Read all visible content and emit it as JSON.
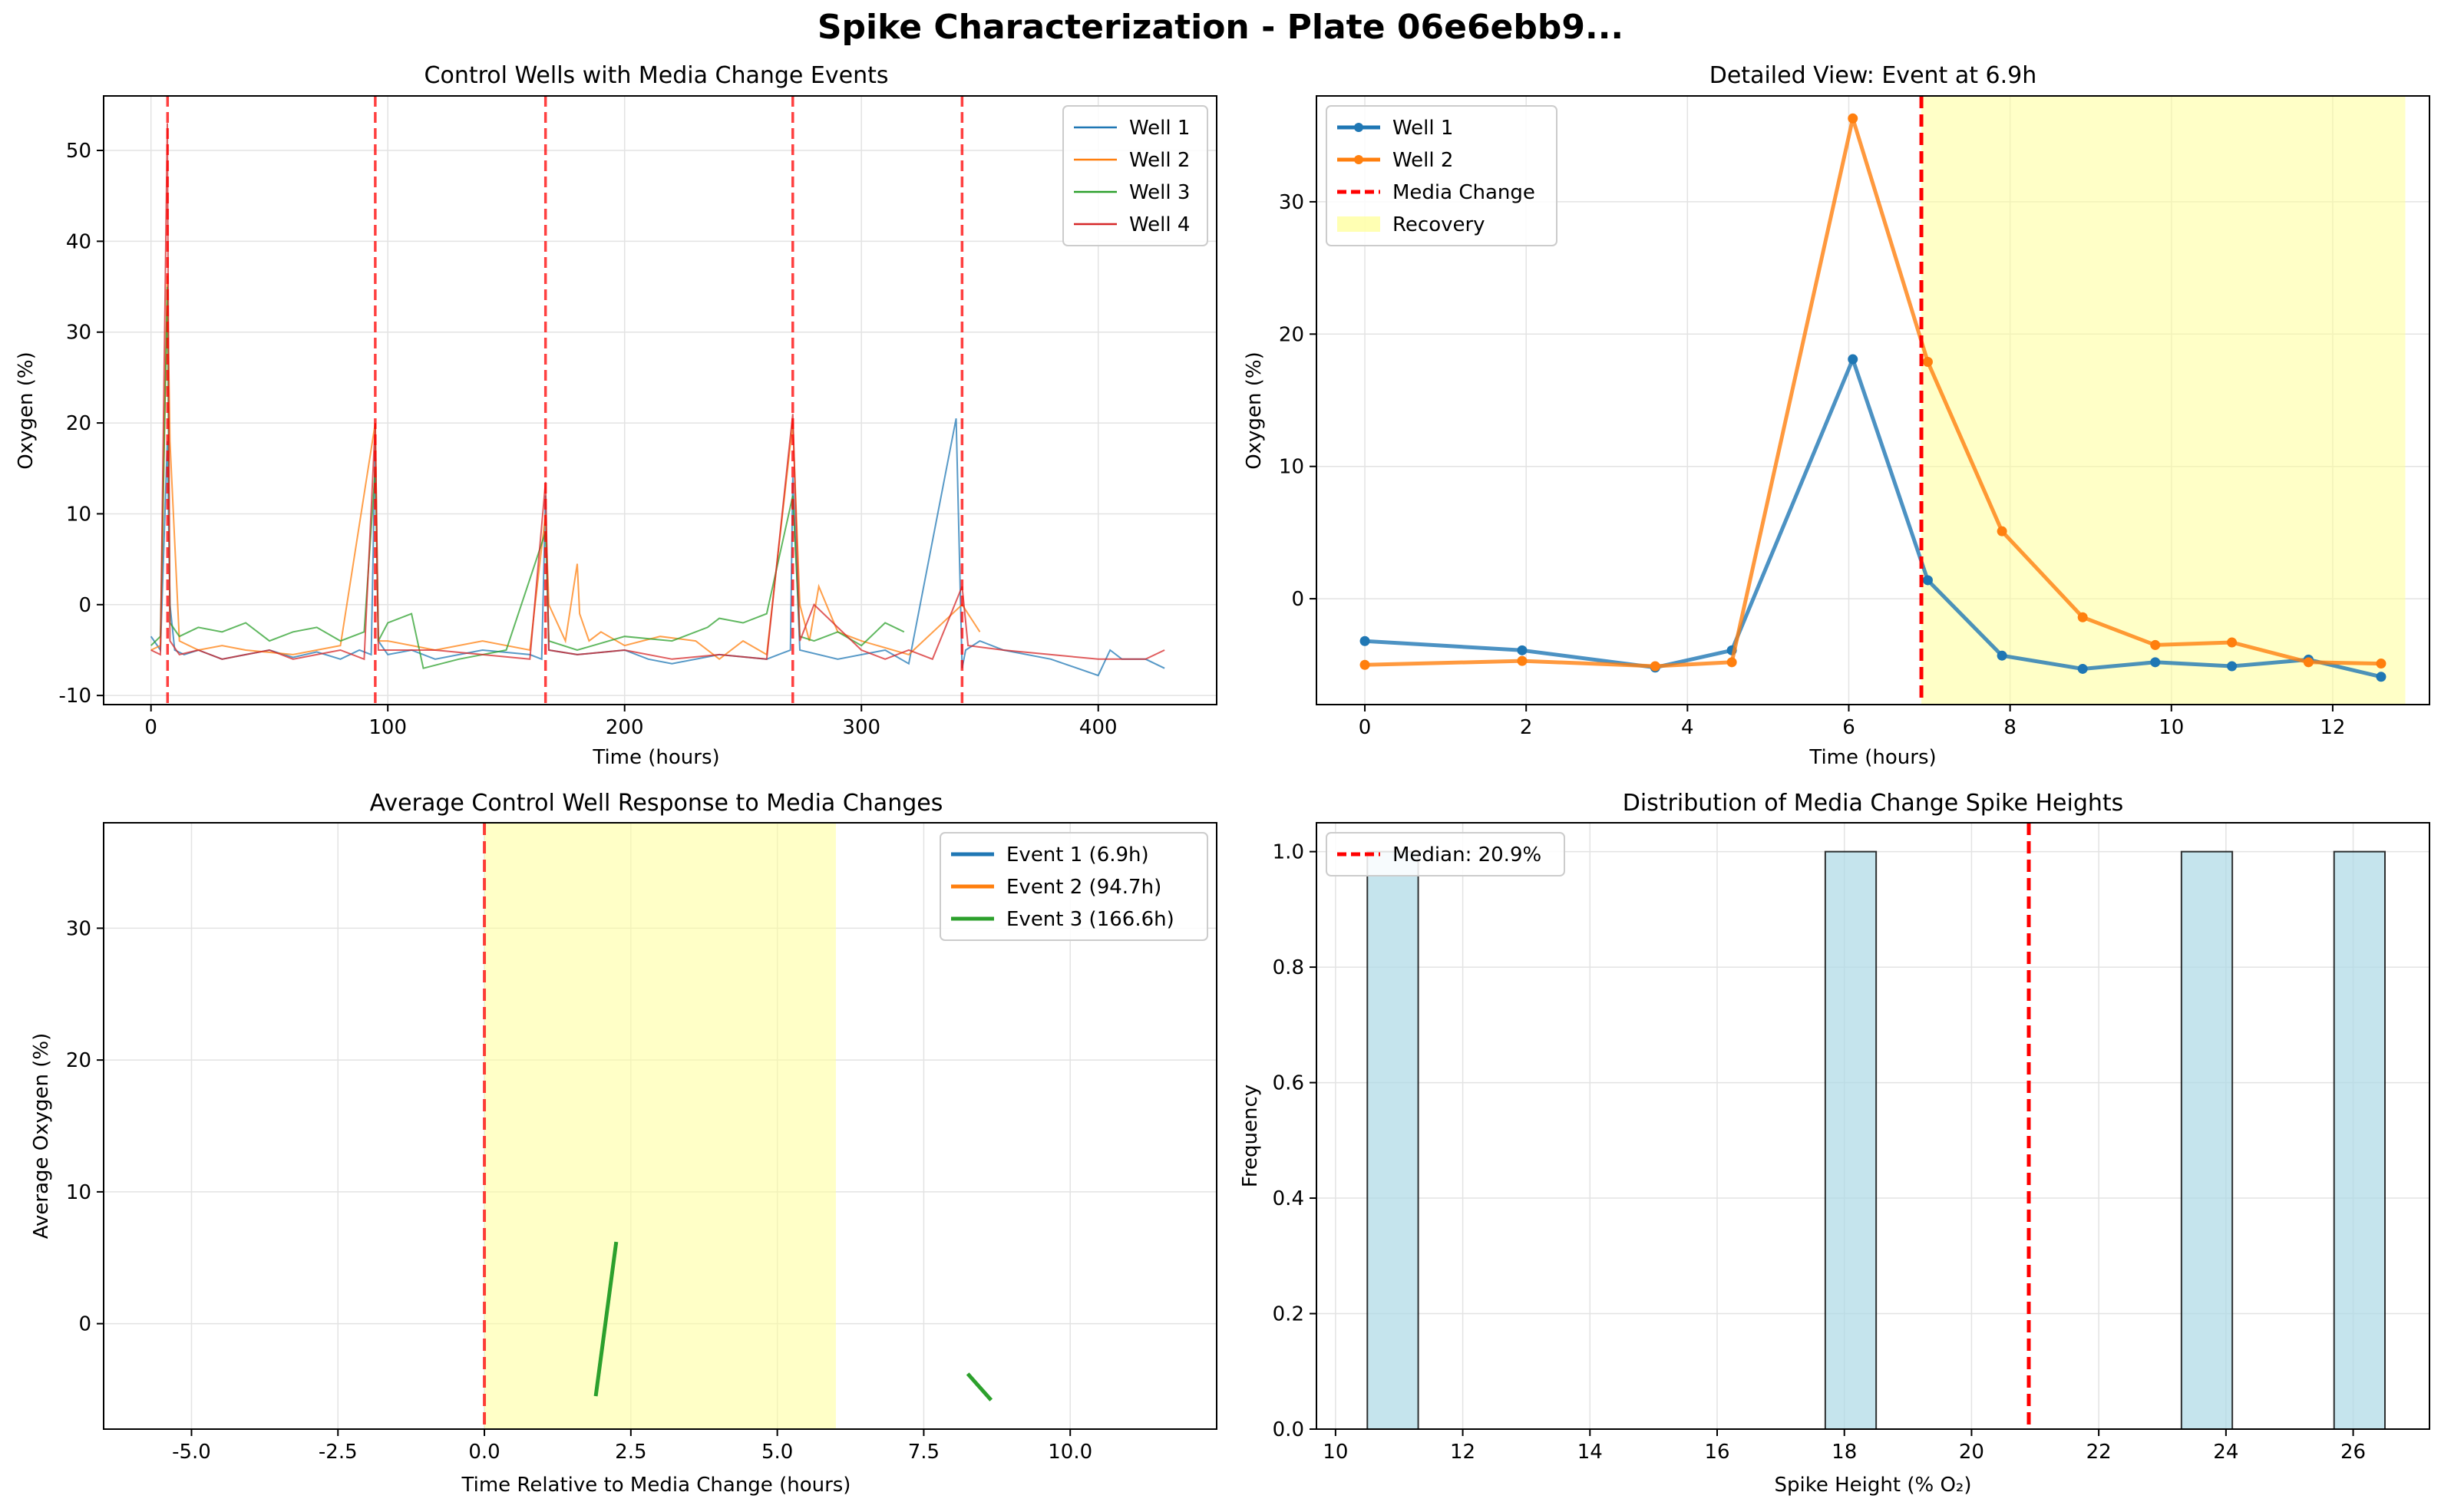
{
  "figure": {
    "title": "Spike Characterization - Plate 06e6ebb9..."
  },
  "chart_data": [
    {
      "type": "line",
      "title": "Control Wells with Media Change Events",
      "xlabel": "Time (hours)",
      "ylabel": "Oxygen (%)",
      "xlim": [
        -20,
        450
      ],
      "ylim": [
        -11,
        56
      ],
      "xticks": [
        0,
        100,
        200,
        300,
        400
      ],
      "yticks": [
        -10,
        0,
        10,
        20,
        30,
        40,
        50
      ],
      "grid": true,
      "legend": "top-right",
      "media_change_times": [
        7,
        94.7,
        166.6,
        271,
        342.5
      ],
      "series": [
        {
          "name": "Well 1",
          "color": "#1f77b4",
          "x": [
            0,
            4,
            6.9,
            8,
            10,
            14,
            20,
            30,
            40,
            50,
            60,
            70,
            80,
            88,
            93,
            94.7,
            96,
            100,
            110,
            120,
            140,
            160,
            165,
            166.6,
            168,
            180,
            200,
            210,
            220,
            240,
            260,
            270,
            271,
            274,
            290,
            310,
            320,
            340,
            342.5,
            344,
            350,
            360,
            380,
            400,
            405,
            410,
            420,
            428
          ],
          "y": [
            -3.5,
            -5,
            18,
            0,
            -5,
            -5.5,
            -5,
            -6,
            -5.5,
            -5,
            -5.8,
            -5.2,
            -6,
            -5,
            -5.5,
            18,
            -4,
            -5.5,
            -5,
            -6,
            -5,
            -5.5,
            -6,
            12,
            -5,
            -5.5,
            -5,
            -6,
            -6.5,
            -5.5,
            -6,
            -5,
            14,
            -5,
            -6,
            -5,
            -6.5,
            20.5,
            -7,
            -5,
            -4,
            -5,
            -6,
            -7.8,
            -5,
            -6,
            -6,
            -7
          ]
        },
        {
          "name": "Well 2",
          "color": "#ff7f0e",
          "x": [
            0,
            4,
            6.9,
            8,
            12,
            20,
            30,
            40,
            60,
            80,
            94.7,
            96,
            100,
            120,
            140,
            160,
            166.6,
            168,
            175,
            180,
            181,
            185,
            190,
            200,
            215,
            230,
            240,
            250,
            260,
            271,
            274,
            278,
            282,
            290,
            300,
            320,
            342.5,
            350
          ],
          "y": [
            -5,
            -4.5,
            36.2,
            18,
            -4,
            -5,
            -4.5,
            -5,
            -5.5,
            -4.5,
            20,
            -4,
            -4,
            -5,
            -4,
            -5,
            10,
            0,
            -4,
            4.5,
            -1,
            -4,
            -3,
            -4.5,
            -3.5,
            -4,
            -6,
            -4,
            -5.5,
            20,
            0,
            -4,
            2,
            -3,
            -4,
            -5.5,
            0,
            -3
          ]
        },
        {
          "name": "Well 3",
          "color": "#2ca02c",
          "x": [
            0,
            4,
            6.9,
            8,
            12,
            20,
            30,
            40,
            50,
            60,
            70,
            80,
            90,
            94.7,
            96,
            100,
            110,
            115,
            130,
            150,
            166.6,
            168,
            180,
            200,
            220,
            235,
            240,
            250,
            260,
            271,
            274,
            280,
            290,
            300,
            310,
            318
          ],
          "y": [
            -4.5,
            -3.5,
            35,
            -2,
            -3.5,
            -2.5,
            -3,
            -2,
            -4,
            -3,
            -2.5,
            -4,
            -3,
            15,
            -4,
            -2,
            -1,
            -7,
            -6,
            -5,
            8,
            -4,
            -5,
            -3.5,
            -4,
            -2.5,
            -1.5,
            -2,
            -1,
            12,
            -3.5,
            -4,
            -3,
            -4.5,
            -2,
            -3
          ]
        },
        {
          "name": "Well 4",
          "color": "#d62728",
          "x": [
            0,
            4,
            6.9,
            8,
            12,
            20,
            30,
            40,
            50,
            60,
            70,
            80,
            90,
            94.7,
            96,
            100,
            120,
            140,
            160,
            166.6,
            168,
            180,
            200,
            220,
            240,
            260,
            271,
            274,
            280,
            300,
            310,
            320,
            330,
            342.5,
            345,
            360,
            380,
            400,
            420,
            428
          ],
          "y": [
            -5,
            -5.5,
            53,
            -4,
            -5.5,
            -5,
            -6,
            -5.5,
            -5,
            -6,
            -5.5,
            -5,
            -6,
            20,
            -5,
            -5,
            -5,
            -5.5,
            -6,
            13.5,
            -5,
            -5.5,
            -5,
            -6,
            -5.5,
            -6,
            21,
            -4,
            0,
            -5,
            -6,
            -5,
            -6,
            2,
            -4.5,
            -5,
            -5.5,
            -6,
            -6,
            -5
          ]
        }
      ]
    },
    {
      "type": "line",
      "title": "Detailed View: Event at 6.9h",
      "xlabel": "Time (hours)",
      "ylabel": "Oxygen (%)",
      "xlim": [
        -0.6,
        13.2
      ],
      "ylim": [
        -8,
        38
      ],
      "xticks": [
        0,
        2,
        4,
        6,
        8,
        10,
        12
      ],
      "yticks": [
        0,
        10,
        20,
        30
      ],
      "grid": true,
      "legend": "top-left",
      "media_change": {
        "label": "Media Change",
        "x": 6.9
      },
      "recovery": {
        "label": "Recovery",
        "x_start": 6.9,
        "x_end": 12.9
      },
      "series": [
        {
          "name": "Well 1",
          "color": "#1f77b4",
          "x": [
            0,
            1.95,
            3.6,
            4.55,
            6.05,
            6.98,
            7.9,
            8.9,
            9.8,
            10.75,
            11.7,
            12.6
          ],
          "y": [
            -3.2,
            -3.9,
            -5.2,
            -3.9,
            18.1,
            1.4,
            -4.3,
            -5.3,
            -4.8,
            -5.1,
            -4.6,
            -5.9
          ]
        },
        {
          "name": "Well 2",
          "color": "#ff7f0e",
          "x": [
            0,
            1.95,
            3.6,
            4.55,
            6.05,
            6.98,
            7.9,
            8.9,
            9.8,
            10.75,
            11.7,
            12.6
          ],
          "y": [
            -5,
            -4.7,
            -5.1,
            -4.8,
            36.3,
            17.9,
            5.1,
            -1.4,
            -3.5,
            -3.3,
            -4.8,
            -4.9
          ]
        }
      ]
    },
    {
      "type": "line",
      "title": "Average Control Well Response to Media Changes",
      "xlabel": "Time Relative to Media Change (hours)",
      "ylabel": "Average Oxygen (%)",
      "xlim": [
        -6.5,
        12.5
      ],
      "ylim": [
        -8,
        38
      ],
      "xticks": [
        -5.0,
        -2.5,
        0.0,
        2.5,
        5.0,
        7.5,
        10.0
      ],
      "yticks": [
        0,
        10,
        20,
        30
      ],
      "grid": true,
      "legend": "top-right",
      "media_change": {
        "x": 0
      },
      "recovery": {
        "x_start": 0,
        "x_end": 6
      },
      "series": [
        {
          "name": "Event 1 (6.9h)",
          "color": "#1f77b4",
          "segments": []
        },
        {
          "name": "Event 2 (94.7h)",
          "color": "#ff7f0e",
          "segments": []
        },
        {
          "name": "Event 3 (166.6h)",
          "color": "#2ca02c",
          "segments": [
            {
              "x": [
                1.9,
                2.25
              ],
              "y": [
                -5.5,
                6.2
              ]
            },
            {
              "x": [
                8.25,
                8.65
              ],
              "y": [
                -3.8,
                -5.8
              ]
            }
          ]
        }
      ]
    },
    {
      "type": "bar",
      "title": "Distribution of Media Change Spike Heights",
      "xlabel": "Spike Height (% O₂)",
      "ylabel": "Frequency",
      "xlim": [
        9.7,
        27.2
      ],
      "ylim": [
        0,
        1.05
      ],
      "xticks": [
        10,
        12,
        14,
        16,
        18,
        20,
        22,
        24,
        26
      ],
      "yticks": [
        0.0,
        0.2,
        0.4,
        0.6,
        0.8,
        1.0
      ],
      "grid": true,
      "legend": "top-left",
      "median": {
        "label": "Median: 20.9%",
        "value": 20.9
      },
      "bins": [
        {
          "x0": 10.5,
          "x1": 11.3,
          "count": 1
        },
        {
          "x0": 17.7,
          "x1": 18.5,
          "count": 1
        },
        {
          "x0": 23.3,
          "x1": 24.1,
          "count": 1
        },
        {
          "x0": 25.7,
          "x1": 26.5,
          "count": 1
        }
      ],
      "bar_color": "#add8e6"
    }
  ]
}
